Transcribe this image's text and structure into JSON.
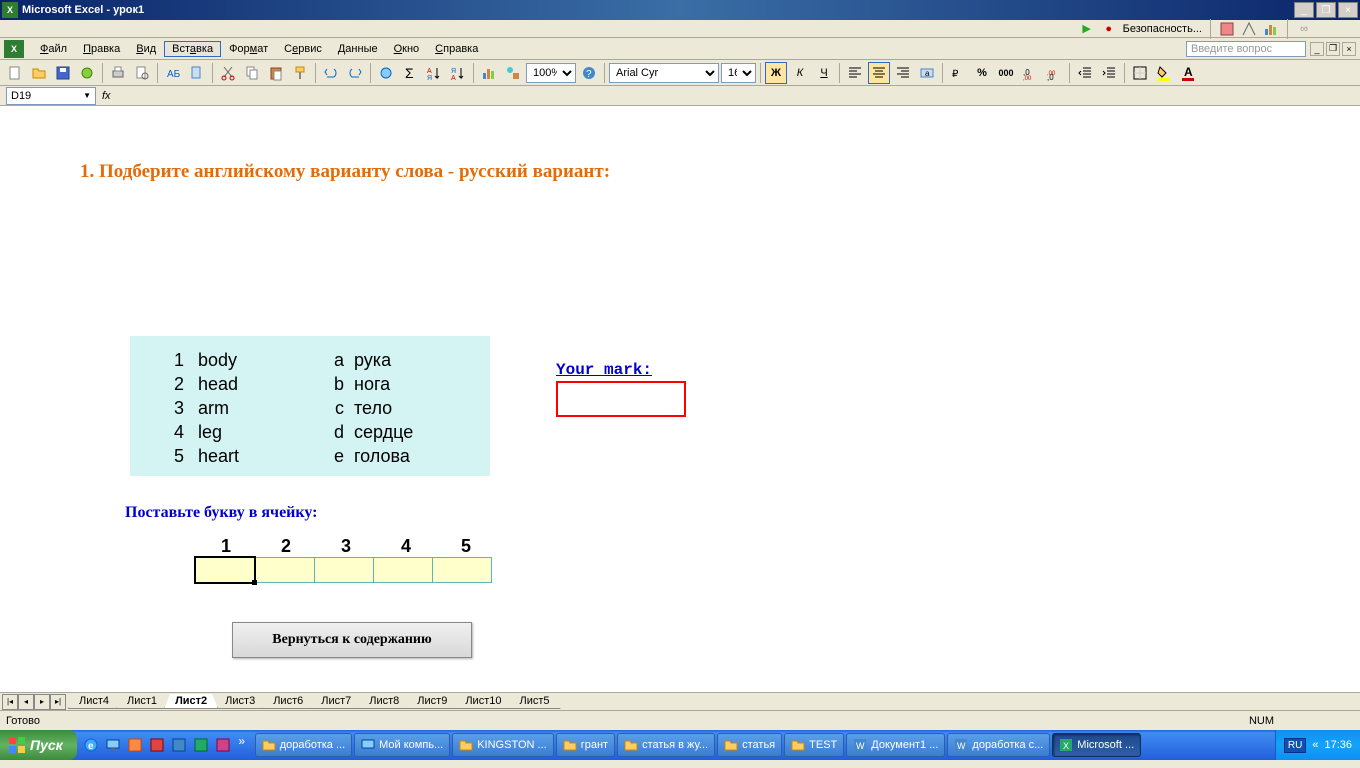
{
  "titlebar": {
    "app": "Microsoft Excel",
    "doc": "урок1"
  },
  "security_label": "Безопасность...",
  "menu": {
    "file": "Файл",
    "edit": "Правка",
    "view": "Вид",
    "insert": "Вставка",
    "format": "Формат",
    "tools": "Сервис",
    "data": "Данные",
    "window": "Окно",
    "help": "Справка"
  },
  "help_placeholder": "Введите вопрос",
  "formatting": {
    "font": "Arial Cyr",
    "size": "16",
    "zoom": "100%"
  },
  "namebox": "D19",
  "heading": "1. Подберите английскому варианту слова - русский вариант:",
  "vocab": [
    {
      "n": "1",
      "en": "body",
      "l": "а",
      "ru": "рука"
    },
    {
      "n": "2",
      "en": "head",
      "l": "b",
      "ru": "нога"
    },
    {
      "n": "3",
      "en": "arm",
      "l": "с",
      "ru": "тело"
    },
    {
      "n": "4",
      "en": "leg",
      "l": "d",
      "ru": "сердце"
    },
    {
      "n": "5",
      "en": "heart",
      "l": "e",
      "ru": "голова"
    }
  ],
  "mark_label": "Your mark:",
  "instruction": "Поставьте букву в ячейку:",
  "answer_cols": [
    "1",
    "2",
    "3",
    "4",
    "5"
  ],
  "back_button": "Вернуться к содержанию",
  "sheets": [
    "Лист4",
    "Лист1",
    "Лист2",
    "Лист3",
    "Лист6",
    "Лист7",
    "Лист8",
    "Лист9",
    "Лист10",
    "Лист5"
  ],
  "active_sheet": "Лист2",
  "status": {
    "ready": "Готово",
    "num": "NUM"
  },
  "taskbar": {
    "start": "Пуск",
    "tasks": [
      {
        "label": "доработка ...",
        "icon": "folder"
      },
      {
        "label": "Мой компь...",
        "icon": "computer"
      },
      {
        "label": "KINGSTON ...",
        "icon": "folder"
      },
      {
        "label": "грант",
        "icon": "folder"
      },
      {
        "label": "статья в жу...",
        "icon": "folder"
      },
      {
        "label": "статья",
        "icon": "folder"
      },
      {
        "label": "TEST",
        "icon": "folder"
      },
      {
        "label": "Документ1 ...",
        "icon": "word"
      },
      {
        "label": "доработка с...",
        "icon": "word"
      },
      {
        "label": "Microsoft ...",
        "icon": "excel",
        "active": true
      }
    ],
    "lang": "RU",
    "time": "17:36"
  },
  "colors": {
    "title_gradient": [
      "#0a246a",
      "#3a6ea5"
    ],
    "heading": "#e36c0a",
    "vocab_bg": "#d4f4f4",
    "mark_border": "#ff0000",
    "link_blue": "#0000cc",
    "answer_bg": "#ffffcc",
    "answer_border": "#5fb5b5"
  }
}
